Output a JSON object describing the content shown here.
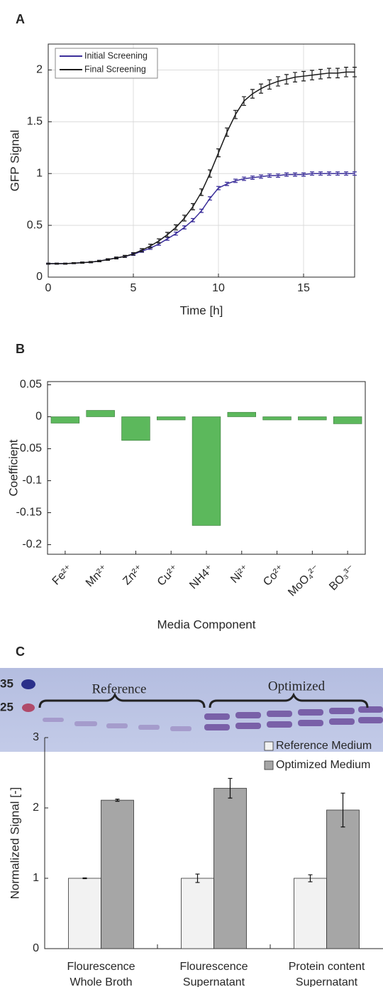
{
  "chart_data": [
    {
      "type": "line",
      "label": "A",
      "xlabel": "Time [h]",
      "ylabel": "GFP Signal",
      "xlim": [
        0,
        18
      ],
      "xticks": [
        0,
        5,
        10,
        15
      ],
      "ylim": [
        0,
        2.25
      ],
      "yticks": [
        0,
        0.5,
        1,
        1.5,
        2
      ],
      "grid": true,
      "legend": "upper left",
      "x": [
        0,
        0.5,
        1,
        1.5,
        2,
        2.5,
        3,
        3.5,
        4,
        4.5,
        5,
        5.5,
        6,
        6.5,
        7,
        7.5,
        8,
        8.5,
        9,
        9.5,
        10,
        10.5,
        11,
        11.5,
        12,
        12.5,
        13,
        13.5,
        14,
        14.5,
        15,
        15.5,
        16,
        16.5,
        17,
        17.5,
        18
      ],
      "series": [
        {
          "name": "Initial Screening",
          "color": "#3b2f9a",
          "values": [
            0.13,
            0.13,
            0.13,
            0.135,
            0.14,
            0.145,
            0.155,
            0.17,
            0.185,
            0.2,
            0.22,
            0.25,
            0.28,
            0.32,
            0.37,
            0.42,
            0.48,
            0.55,
            0.64,
            0.76,
            0.86,
            0.9,
            0.93,
            0.95,
            0.96,
            0.97,
            0.98,
            0.98,
            0.99,
            0.99,
            0.99,
            1.0,
            1.0,
            1.0,
            1.0,
            1.0,
            1.0
          ],
          "errors": [
            0.005,
            0.005,
            0.005,
            0.005,
            0.005,
            0.005,
            0.006,
            0.006,
            0.007,
            0.008,
            0.01,
            0.01,
            0.012,
            0.012,
            0.014,
            0.015,
            0.015,
            0.016,
            0.016,
            0.016,
            0.016,
            0.016,
            0.016,
            0.016,
            0.016,
            0.016,
            0.016,
            0.016,
            0.016,
            0.016,
            0.016,
            0.016,
            0.016,
            0.016,
            0.016,
            0.016,
            0.016
          ]
        },
        {
          "name": "Final Screening",
          "color": "#1a1a1a",
          "values": [
            0.13,
            0.13,
            0.13,
            0.135,
            0.14,
            0.145,
            0.155,
            0.17,
            0.185,
            0.2,
            0.225,
            0.26,
            0.3,
            0.35,
            0.41,
            0.48,
            0.57,
            0.68,
            0.82,
            1.0,
            1.2,
            1.4,
            1.57,
            1.7,
            1.77,
            1.82,
            1.86,
            1.89,
            1.91,
            1.93,
            1.94,
            1.95,
            1.96,
            1.97,
            1.97,
            1.98,
            1.98
          ],
          "errors": [
            0.005,
            0.005,
            0.005,
            0.005,
            0.006,
            0.006,
            0.007,
            0.008,
            0.009,
            0.01,
            0.012,
            0.015,
            0.018,
            0.02,
            0.022,
            0.025,
            0.028,
            0.03,
            0.032,
            0.035,
            0.038,
            0.04,
            0.04,
            0.042,
            0.042,
            0.044,
            0.045,
            0.045,
            0.046,
            0.046,
            0.046,
            0.046,
            0.046,
            0.046,
            0.046,
            0.046,
            0.046
          ]
        }
      ]
    },
    {
      "type": "bar",
      "label": "B",
      "xlabel": "Media Component",
      "ylabel": "Coefficient",
      "categories": [
        "Fe²⁺",
        "Mn²⁺",
        "Zn²⁺",
        "Cu²⁺",
        "NH4⁺",
        "Ni²⁺",
        "Co²⁺",
        "MoO₄²⁻",
        "BO₃³⁻"
      ],
      "values": [
        -0.01,
        0.01,
        -0.037,
        -0.005,
        -0.17,
        0.007,
        -0.005,
        -0.005,
        -0.011
      ],
      "color": "#5cb85c",
      "ylim": [
        -0.215,
        0.055
      ],
      "yticks": [
        0.05,
        0,
        -0.05,
        -0.1,
        -0.15,
        -0.2
      ],
      "grid": false
    },
    {
      "type": "grouped_bar",
      "label": "C",
      "ylabel": "Normalized Signal  [-]",
      "gel": {
        "groups": [
          "Reference",
          "Optimized"
        ],
        "markers": [
          "35",
          "25"
        ]
      },
      "categories": [
        "Flourescence\nWhole Broth",
        "Flourescence\nSupernatant",
        "Protein content\nSupernatant"
      ],
      "ylim": [
        0,
        3
      ],
      "yticks": [
        0,
        1,
        2,
        3
      ],
      "grid": false,
      "legend": "upper right",
      "series": [
        {
          "name": "Reference Medium",
          "color": "#f2f2f2",
          "values": [
            1,
            1,
            1
          ],
          "errors": [
            0.005,
            0.06,
            0.05
          ]
        },
        {
          "name": "Optimized Medium",
          "color": "#a6a6a6",
          "values": [
            2.11,
            2.28,
            1.97
          ],
          "errors": [
            0.015,
            0.14,
            0.24
          ]
        }
      ]
    }
  ]
}
